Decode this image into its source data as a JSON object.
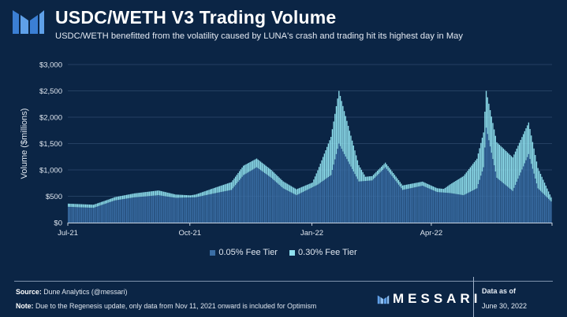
{
  "header": {
    "title": "USDC/WETH V3 Trading Volume",
    "subtitle": "USDC/WETH benefitted from the volatility caused by LUNA's crash and trading hit its highest day in May"
  },
  "colors": {
    "background": "#0b2545",
    "tier_005": "#3a6ea5",
    "tier_030": "#8fe0ee",
    "grid": "#2e4a6d"
  },
  "legend": {
    "tier_005_label": "0.05% Fee Tier",
    "tier_030_label": "0.30% Fee Tier"
  },
  "footer": {
    "source_label": "Source:",
    "source_text": "Dune Analytics (@messari)",
    "note_label": "Note:",
    "note_text": "Due to the Regenesis update, only data from Nov 11, 2021 onward is included for Optimism",
    "brand": "MESSARI",
    "data_as_of_label": "Data as of",
    "data_as_of_date": "June 30, 2022"
  },
  "chart_data": {
    "type": "bar",
    "stacked": true,
    "title": "USDC/WETH V3 Trading Volume",
    "ylabel": "Volume ($millions)",
    "xlabel": "",
    "ylim": [
      0,
      3000
    ],
    "yticks": [
      0,
      500,
      1000,
      1500,
      2000,
      2500,
      3000
    ],
    "ytick_labels": [
      "$0",
      "$500",
      "$1,000",
      "$1,500",
      "$2,000",
      "$2,500",
      "$3,000"
    ],
    "x_start": "2021-07-01",
    "x_end": "2022-06-30",
    "xticks": [
      "2021-07-01",
      "2021-10-01",
      "2022-01-01",
      "2022-04-01"
    ],
    "xtick_labels": [
      "Jul-21",
      "Oct-21",
      "Jan-22",
      "Apr-22"
    ],
    "grid": true,
    "legend_position": "bottom",
    "series": [
      {
        "name": "0.05% Fee Tier",
        "anchors": [
          [
            "2021-07-01",
            300
          ],
          [
            "2021-07-20",
            280
          ],
          [
            "2021-08-05",
            420
          ],
          [
            "2021-08-20",
            480
          ],
          [
            "2021-09-07",
            520
          ],
          [
            "2021-09-20",
            470
          ],
          [
            "2021-10-05",
            480
          ],
          [
            "2021-10-20",
            560
          ],
          [
            "2021-11-01",
            620
          ],
          [
            "2021-11-10",
            900
          ],
          [
            "2021-11-20",
            1050
          ],
          [
            "2021-12-01",
            850
          ],
          [
            "2021-12-10",
            650
          ],
          [
            "2021-12-20",
            520
          ],
          [
            "2022-01-05",
            720
          ],
          [
            "2022-01-15",
            900
          ],
          [
            "2022-01-21",
            1500
          ],
          [
            "2022-01-25",
            1300
          ],
          [
            "2022-02-05",
            780
          ],
          [
            "2022-02-15",
            800
          ],
          [
            "2022-02-25",
            1050
          ],
          [
            "2022-03-10",
            620
          ],
          [
            "2022-03-25",
            700
          ],
          [
            "2022-04-05",
            580
          ],
          [
            "2022-04-15",
            560
          ],
          [
            "2022-04-25",
            520
          ],
          [
            "2022-05-05",
            650
          ],
          [
            "2022-05-10",
            1050
          ],
          [
            "2022-05-12",
            1800
          ],
          [
            "2022-05-20",
            850
          ],
          [
            "2022-06-01",
            600
          ],
          [
            "2022-06-13",
            1300
          ],
          [
            "2022-06-20",
            650
          ],
          [
            "2022-06-30",
            400
          ]
        ]
      },
      {
        "name": "0.30% Fee Tier",
        "anchors": [
          [
            "2021-07-01",
            60
          ],
          [
            "2021-08-01",
            60
          ],
          [
            "2021-09-07",
            90
          ],
          [
            "2021-10-01",
            40
          ],
          [
            "2021-11-10",
            180
          ],
          [
            "2021-12-01",
            150
          ],
          [
            "2022-01-01",
            90
          ],
          [
            "2022-01-21",
            1000
          ],
          [
            "2022-02-10",
            80
          ],
          [
            "2022-03-01",
            90
          ],
          [
            "2022-04-10",
            70
          ],
          [
            "2022-05-12",
            700
          ],
          [
            "2022-06-13",
            600
          ],
          [
            "2022-06-30",
            80
          ]
        ]
      }
    ]
  }
}
